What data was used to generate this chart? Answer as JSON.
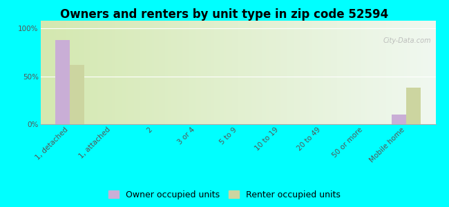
{
  "title": "Owners and renters by unit type in zip code 52594",
  "categories": [
    "1, detached",
    "1, attached",
    "2",
    "3 or 4",
    "5 to 9",
    "10 to 19",
    "20 to 49",
    "50 or more",
    "Mobile home"
  ],
  "owner_values": [
    88,
    0,
    0,
    0,
    0,
    0,
    0,
    0,
    10
  ],
  "renter_values": [
    62,
    0,
    0,
    0,
    0,
    0,
    0,
    0,
    38
  ],
  "owner_color": "#c9aed6",
  "renter_color": "#ccd5a0",
  "yticks": [
    0,
    50,
    100
  ],
  "ylabels": [
    "0%",
    "50%",
    "100%"
  ],
  "ylim": [
    0,
    108
  ],
  "background_color": "#00ffff",
  "plot_bg_left": "#d4e8b0",
  "plot_bg_right": "#f0f8f0",
  "title_fontsize": 12,
  "legend_fontsize": 9,
  "tick_fontsize": 7.5,
  "bar_width": 0.35,
  "watermark": "City-Data.com"
}
